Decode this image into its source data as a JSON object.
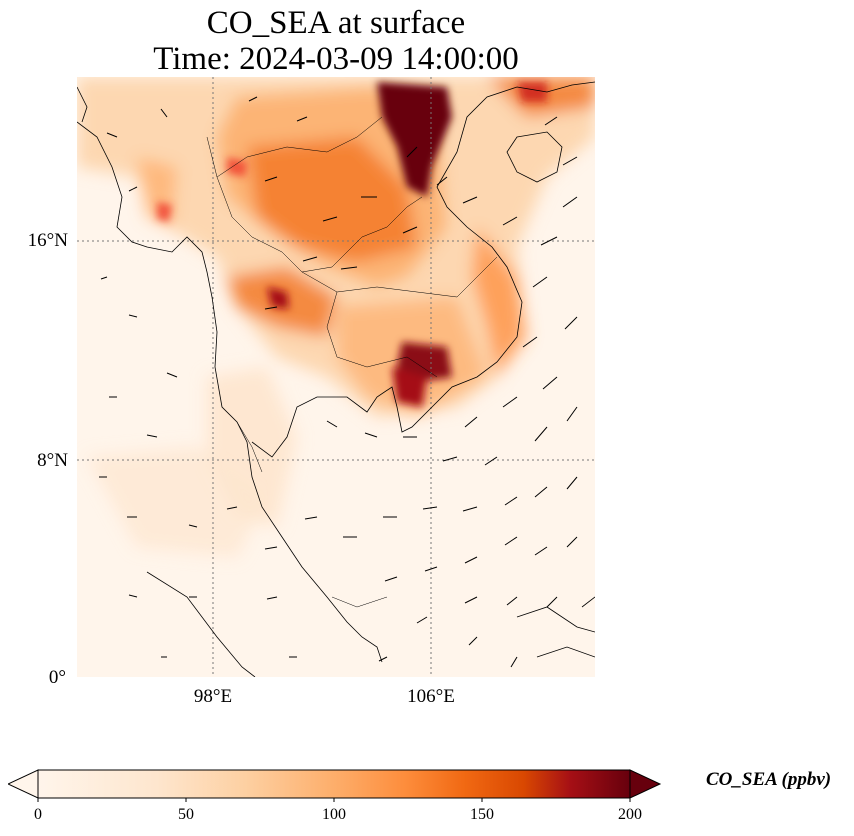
{
  "title": {
    "line1": "CO_SEA at surface",
    "line2": "Time: 2024-03-09 14:00:00"
  },
  "map": {
    "lat_labels": [
      "16°N",
      "8°N",
      "0°"
    ],
    "lon_labels": [
      "98°E",
      "106°E"
    ],
    "gridlines": "dotted"
  },
  "colorbar": {
    "label": "CO_SEA (ppbv)",
    "ticks": [
      "0",
      "50",
      "100",
      "150",
      "200"
    ],
    "colormap_stops": [
      "#fff5eb",
      "#fdd0a2",
      "#fd8d3c",
      "#d94801",
      "#a50f15",
      "#67000d"
    ],
    "extend": "both"
  }
}
